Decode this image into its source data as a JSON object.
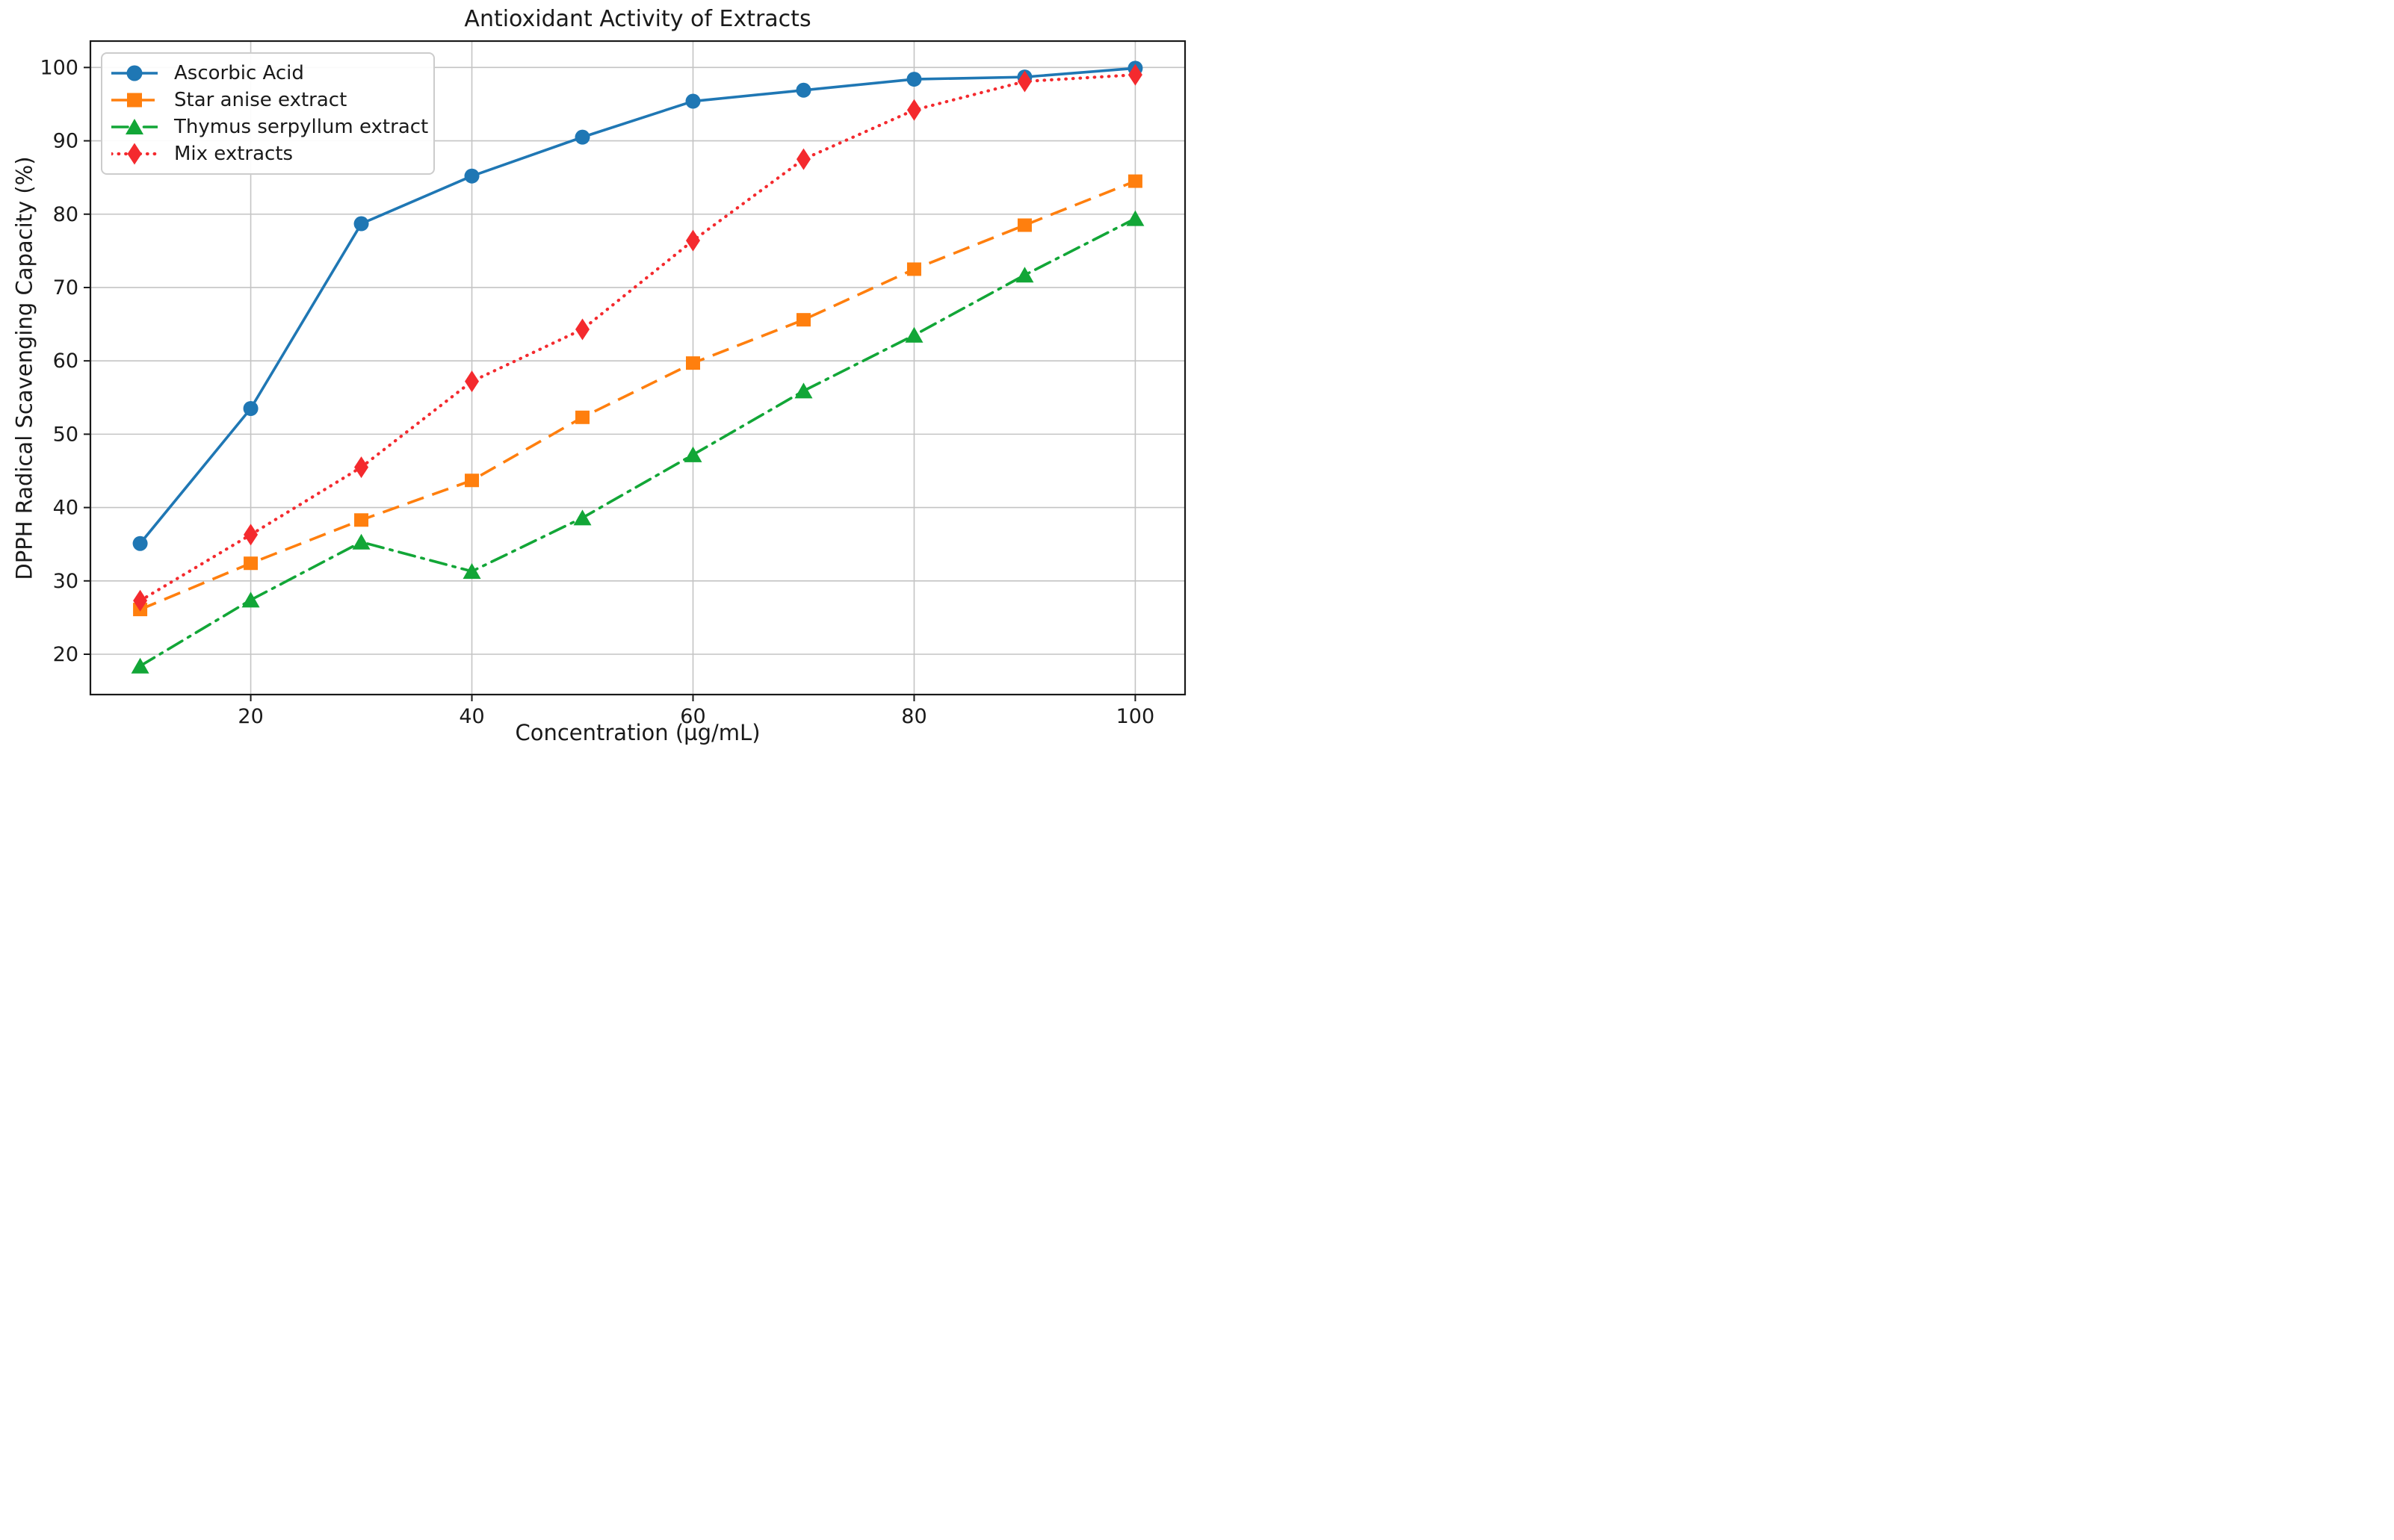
{
  "title": "Antioxidant Activity of Extracts",
  "colors": {
    "ascorbic": "#1f77b4",
    "star_anise": "#ff7f0e",
    "thymus": "#12a637",
    "mix": "#f42a2e",
    "grid": "#c4c4c4",
    "spine": "#1a1a1a",
    "text": "#1a1a1a",
    "legend_border": "#cccccc"
  },
  "chart_data": {
    "type": "line",
    "title": "Antioxidant Activity of Extracts",
    "xlabel": "Concentration (µg/mL)",
    "ylabel": "DPPH Radical Scavenging Capacity (%)",
    "x": [
      10,
      20,
      30,
      40,
      50,
      60,
      70,
      80,
      90,
      100
    ],
    "series": [
      {
        "name": "Ascorbic Acid",
        "color": "#1f77b4",
        "linestyle": "solid",
        "marker": "circle",
        "values": [
          35.1,
          53.5,
          78.7,
          85.2,
          90.5,
          95.4,
          96.9,
          98.4,
          98.7,
          99.9
        ]
      },
      {
        "name": "Star anise extract",
        "color": "#ff7f0e",
        "linestyle": "dashed",
        "marker": "square",
        "values": [
          26.1,
          32.4,
          38.3,
          43.7,
          52.3,
          59.7,
          65.6,
          72.5,
          78.5,
          84.5
        ]
      },
      {
        "name": "Thymus serpyllum extract",
        "color": "#12a637",
        "linestyle": "dashdot",
        "marker": "triangle",
        "values": [
          18.4,
          27.4,
          35.3,
          31.3,
          38.6,
          47.2,
          55.9,
          63.5,
          71.7,
          79.4
        ]
      },
      {
        "name": "Mix extracts",
        "color": "#f42a2e",
        "linestyle": "dotted",
        "marker": "diamond",
        "values": [
          27.3,
          36.3,
          45.5,
          57.2,
          64.3,
          76.4,
          87.5,
          94.2,
          98.1,
          99.0
        ]
      }
    ],
    "x_ticks": [
      20,
      40,
      60,
      80,
      100
    ],
    "y_ticks": [
      20,
      30,
      40,
      50,
      60,
      70,
      80,
      90,
      100
    ],
    "xlim": [
      5.5,
      104.5
    ],
    "ylim": [
      14.5,
      103.6
    ],
    "grid": true,
    "legend": {
      "position": "upper left",
      "entries": [
        "Ascorbic Acid",
        "Star anise extract",
        "Thymus serpyllum extract",
        "Mix extracts"
      ]
    }
  }
}
